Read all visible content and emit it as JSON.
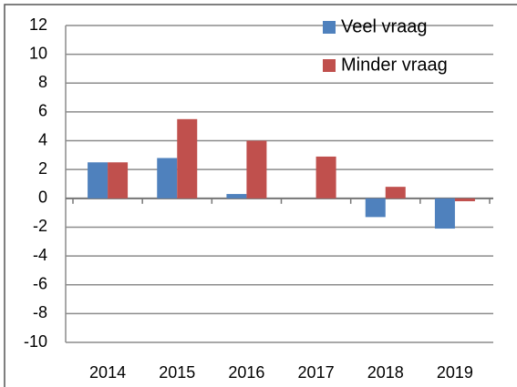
{
  "chart_data": {
    "type": "bar",
    "categories": [
      "2014",
      "2015",
      "2016",
      "2017",
      "2018",
      "2019"
    ],
    "series": [
      {
        "name": "Veel vraag",
        "color": "#4f81bd",
        "values": [
          2.5,
          2.8,
          0.3,
          0,
          -1.3,
          -2.1
        ]
      },
      {
        "name": "Minder vraag",
        "color": "#c0504d",
        "values": [
          2.5,
          5.5,
          4.0,
          2.9,
          0.8,
          -0.2
        ]
      }
    ],
    "ylim": [
      -10,
      12
    ],
    "yticks": [
      -10,
      -8,
      -6,
      -4,
      -2,
      0,
      2,
      4,
      6,
      8,
      10,
      12
    ],
    "grid": true,
    "legend": "top-right"
  }
}
